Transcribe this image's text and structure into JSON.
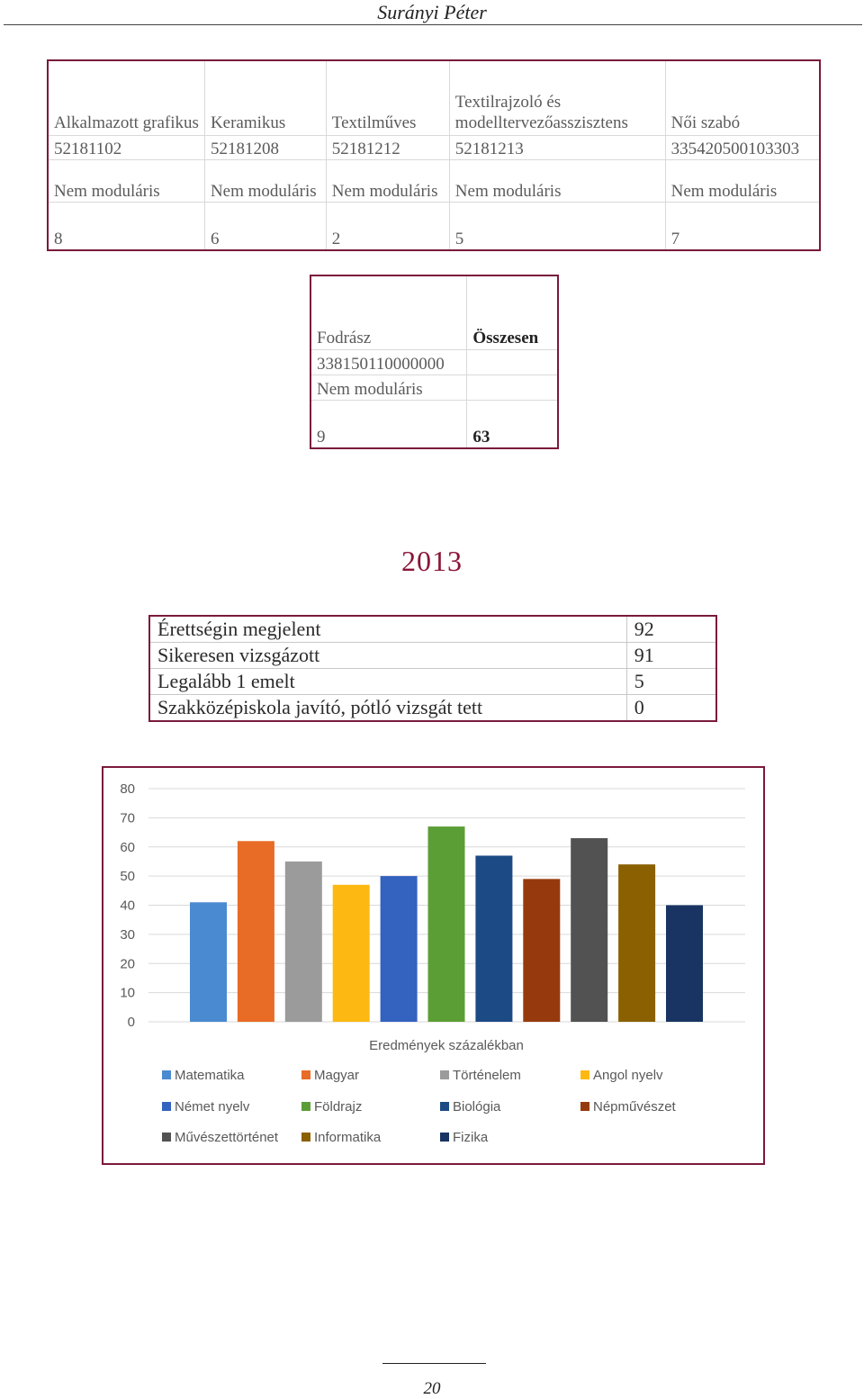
{
  "header": {
    "title": "Surányi Péter"
  },
  "table_professions": {
    "columns": [
      {
        "name": "Alkalmazott grafikus",
        "code": "52181102",
        "type": "Nem moduláris",
        "count": "8"
      },
      {
        "name": "Keramikus",
        "code": "52181208",
        "type": "Nem moduláris",
        "count": "6"
      },
      {
        "name": "Textilműves",
        "code": "52181212",
        "type": "Nem moduláris",
        "count": "2"
      },
      {
        "name": "Textilrajzoló és modelltervezőasszisztens",
        "code": "52181213",
        "type": "Nem moduláris",
        "count": "5"
      },
      {
        "name": "Női szabó",
        "code": "335420500103303",
        "type": "Nem moduláris",
        "count": "7"
      }
    ]
  },
  "table_total": {
    "name": "Fodrász",
    "code": "338150110000000",
    "type": "Nem moduláris",
    "count": "9",
    "total_label": "Összesen",
    "total_value": "63"
  },
  "year_heading": "2013",
  "exam_table": {
    "rows": [
      {
        "label": "Érettségin megjelent",
        "value": "92"
      },
      {
        "label": "Sikeresen vizsgázott",
        "value": "91"
      },
      {
        "label": "Legalább 1 emelt",
        "value": "5"
      },
      {
        "label": "Szakközépiskola javító, pótló vizsgát tett",
        "value": "0"
      }
    ]
  },
  "chart_data": {
    "type": "bar",
    "xlabel": "Eredmények százalékban",
    "ylabel": "",
    "ylim": [
      0,
      80
    ],
    "yticks": [
      0,
      10,
      20,
      30,
      40,
      50,
      60,
      70,
      80
    ],
    "grid": true,
    "legend_position": "bottom",
    "series": [
      {
        "name": "Matematika",
        "value": 41,
        "color": "#4a8ad0"
      },
      {
        "name": "Magyar",
        "value": 62,
        "color": "#e86b26"
      },
      {
        "name": "Történelem",
        "value": 55,
        "color": "#9b9b9b"
      },
      {
        "name": "Angol nyelv",
        "value": 47,
        "color": "#fdb912"
      },
      {
        "name": "Német nyelv",
        "value": 50,
        "color": "#3362bf"
      },
      {
        "name": "Földrajz",
        "value": 67,
        "color": "#5c9e36"
      },
      {
        "name": "Biológia",
        "value": 57,
        "color": "#1c4a84"
      },
      {
        "name": "Népművészet",
        "value": 49,
        "color": "#963a0d"
      },
      {
        "name": "Művészettörténet",
        "value": 63,
        "color": "#525252"
      },
      {
        "name": "Informatika",
        "value": 54,
        "color": "#8a6000"
      },
      {
        "name": "Fizika",
        "value": 40,
        "color": "#193462"
      }
    ]
  },
  "footer": {
    "page_number": "20"
  }
}
